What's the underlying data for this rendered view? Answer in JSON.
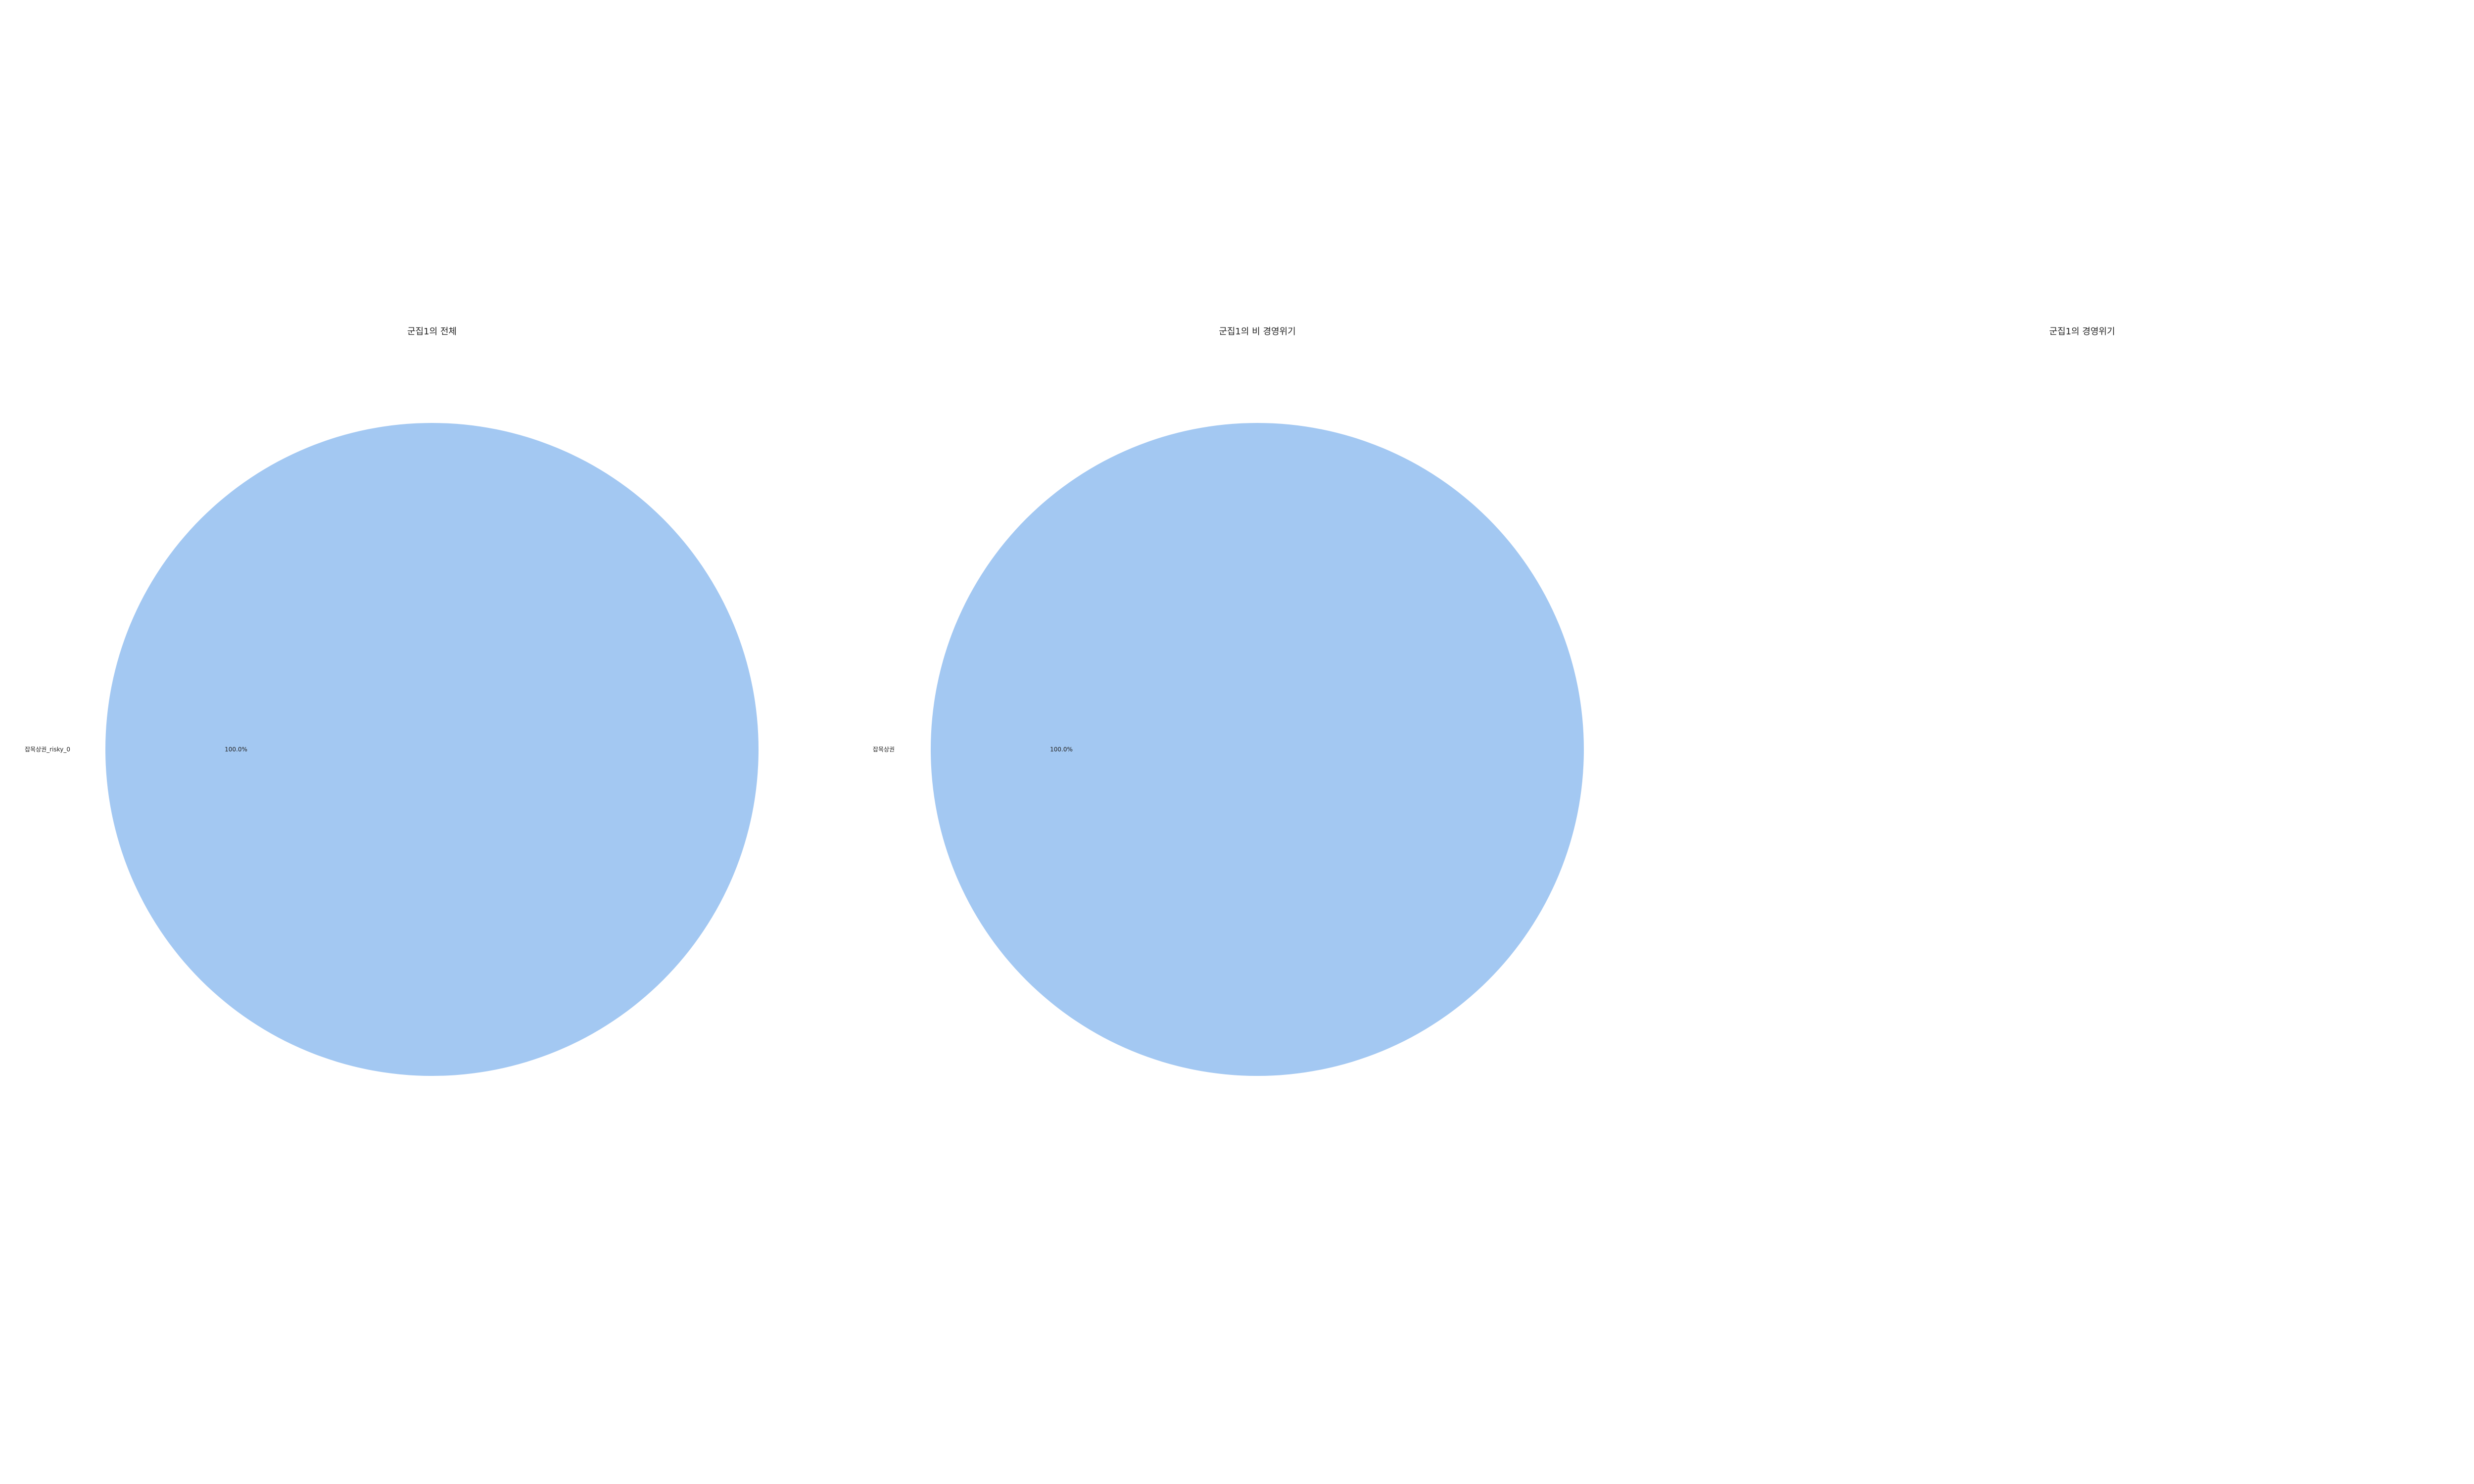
{
  "chart_data": [
    {
      "type": "pie",
      "title": "군집1의 전체",
      "slices": [
        {
          "label": "잡목상권_risky_0",
          "value": 100.0,
          "pct_label": "100.0%",
          "color": "#a3c8f2"
        }
      ]
    },
    {
      "type": "pie",
      "title": "군집1의 비 경영위기",
      "slices": [
        {
          "label": "잡목상권",
          "value": 100.0,
          "pct_label": "100.0%",
          "color": "#a3c8f2"
        }
      ]
    },
    {
      "type": "pie",
      "title": "군집1의 경영위기",
      "slices": []
    }
  ]
}
